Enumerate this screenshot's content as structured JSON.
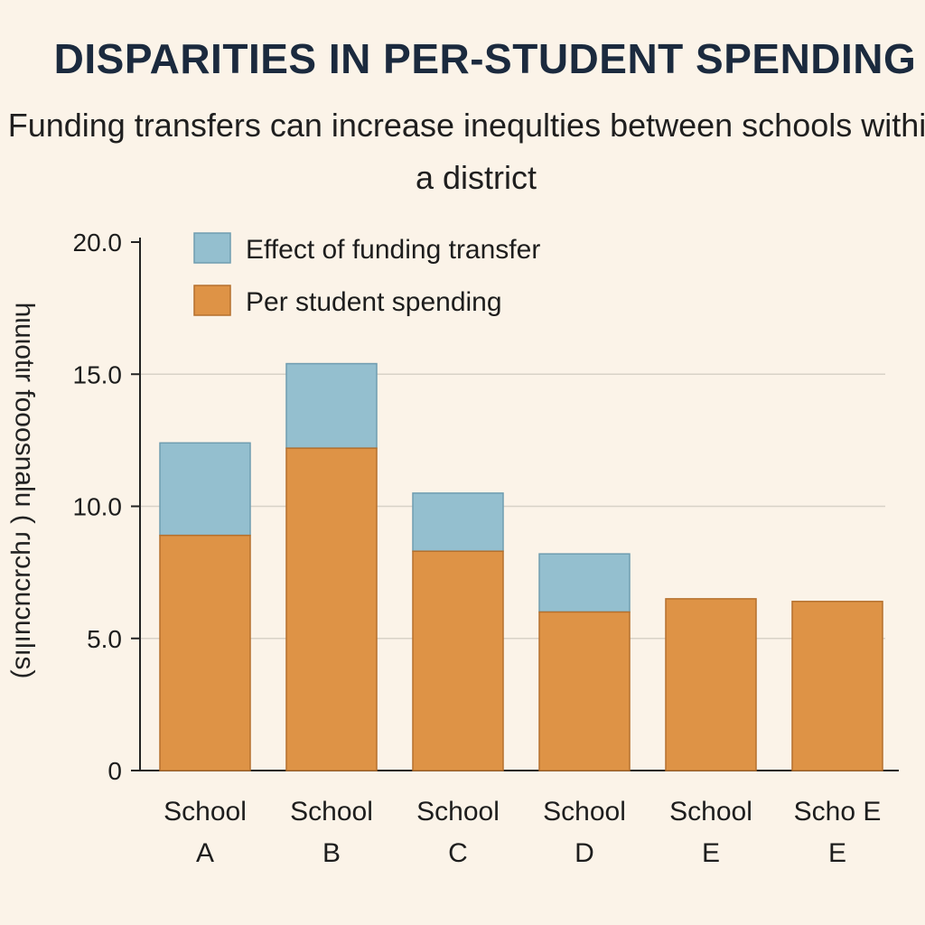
{
  "colors": {
    "background": "#fbf3e8",
    "spending": "#de9346",
    "transfer": "#94bfcf",
    "bar_edge": "#b5702d",
    "transfer_edge": "#6f9db0",
    "gridline": "#d8d2c7",
    "axis": "#222222"
  },
  "chart_data": {
    "type": "bar",
    "stacked": true,
    "title": "DISPARITIES IN PER-STUDENT SPENDING",
    "subtitle": "Funding transfers can increase inequlties between schools within a district",
    "ylabel": "hιuιotιr fooosnalu ( ɾɥɔɹɔuɔuılıs)",
    "xlabel": "",
    "ylim": [
      0,
      20
    ],
    "yticks": [
      {
        "value": 0,
        "label": "0"
      },
      {
        "value": 5,
        "label": "5.0"
      },
      {
        "value": 10,
        "label": "10.0"
      },
      {
        "value": 15,
        "label": "15.0"
      },
      {
        "value": 20,
        "label": "20.0"
      }
    ],
    "grid": true,
    "legend_position": "top-left",
    "categories": [
      [
        "School",
        "A"
      ],
      [
        "School",
        "B"
      ],
      [
        "School",
        "C"
      ],
      [
        "School",
        "D"
      ],
      [
        "School",
        "E"
      ],
      [
        "Scho E",
        "E"
      ]
    ],
    "series": [
      {
        "name": "Per  student  spending",
        "legend_order": 2,
        "values": [
          8.9,
          12.2,
          8.3,
          6.0,
          6.5,
          6.4
        ]
      },
      {
        "name": "Effect of funding transfer",
        "legend_order": 1,
        "values": [
          3.5,
          3.2,
          2.2,
          2.2,
          0,
          0
        ]
      }
    ]
  }
}
